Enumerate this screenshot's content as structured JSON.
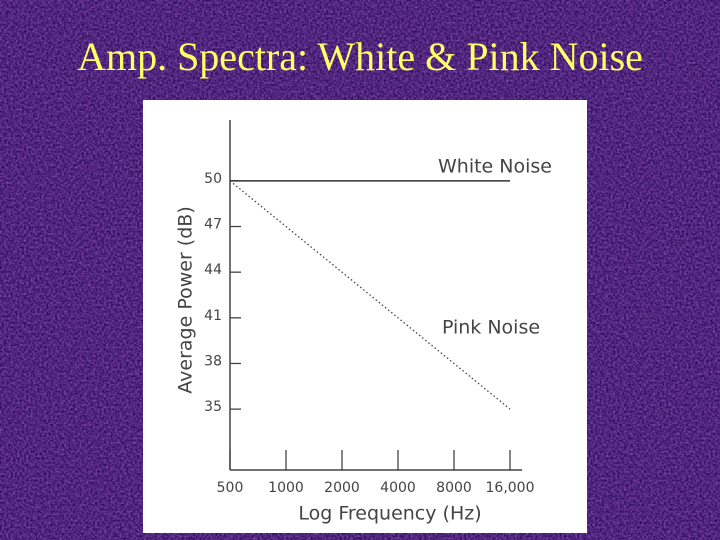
{
  "chart_data": {
    "type": "line",
    "title": "Amp. Spectra:  White & Pink Noise",
    "x_label": "Log Frequency  (Hz)",
    "y_label": "Average  Power  (dB)",
    "x": [
      500,
      1000,
      2000,
      4000,
      8000,
      16000
    ],
    "x_scale": "log",
    "xlim": [
      500,
      16000
    ],
    "xticks": [
      500,
      1000,
      2000,
      4000,
      8000,
      {
        "value": 16000,
        "label": "16,000"
      }
    ],
    "ylim": [
      31,
      54
    ],
    "yticks": [
      35,
      38,
      41,
      44,
      47,
      50
    ],
    "series": [
      {
        "name": "White Noise",
        "color": "#333333",
        "style": "solid",
        "values": [
          50,
          50,
          50,
          50,
          50,
          50
        ]
      },
      {
        "name": "Pink Noise",
        "color": "#444444",
        "style": "dotted",
        "values": [
          50,
          47,
          44,
          41,
          38,
          35
        ]
      }
    ]
  }
}
